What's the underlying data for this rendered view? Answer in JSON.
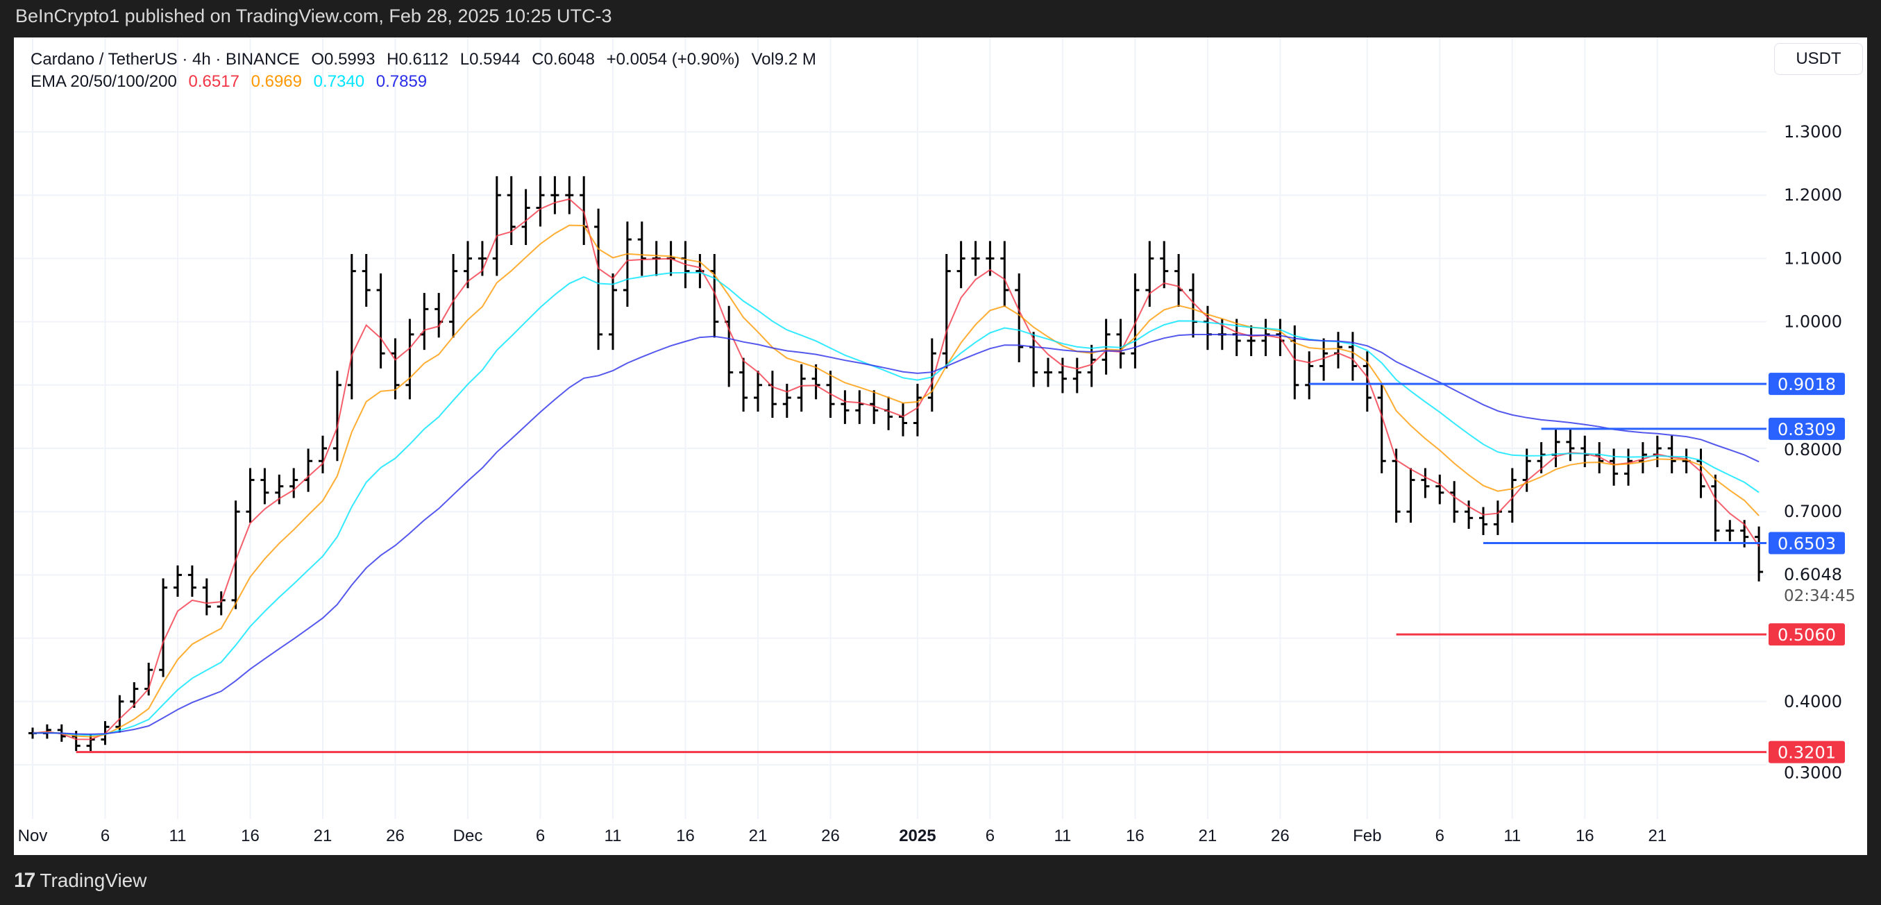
{
  "header": {
    "published": "BeInCrypto1 published on TradingView.com, Feb 28, 2025 10:25 UTC-3"
  },
  "legend": {
    "symbol": "Cardano / TetherUS · 4h · BINANCE",
    "open": "O0.5993",
    "high": "H0.6112",
    "low": "L0.5944",
    "close": "C0.6048",
    "change": "+0.0054 (+0.90%)",
    "volume": "Vol9.2 M",
    "ema_label": "EMA 20/50/100/200",
    "ema_values": [
      "0.6517",
      "0.6969",
      "0.7340",
      "0.7859"
    ]
  },
  "colors": {
    "ema20": "#f23645",
    "ema50": "#ff9800",
    "ema100": "#00e5ff",
    "ema200": "#2a2ee8",
    "support": "#f23645",
    "resistance": "#2962ff",
    "candle": "#000000"
  },
  "currency_button": "USDT",
  "countdown": "02:34:45",
  "footer": {
    "brand": "TradingView"
  },
  "chart_data": {
    "type": "ohlc",
    "title": "Cardano / TetherUS · 4h · BINANCE",
    "ylim": [
      0.25,
      1.37
    ],
    "yticks": [
      "1.3000",
      "1.2000",
      "1.1000",
      "1.0000",
      "0.8000",
      "0.7000",
      "0.4000",
      "0.3000"
    ],
    "ytick_values": [
      1.3,
      1.2,
      1.1,
      1.0,
      0.8,
      0.7,
      0.4,
      0.3
    ],
    "xticks": [
      {
        "label": "Nov",
        "date": "2024-11-01"
      },
      {
        "label": "6",
        "date": "2024-11-06"
      },
      {
        "label": "11",
        "date": "2024-11-11"
      },
      {
        "label": "16",
        "date": "2024-11-16"
      },
      {
        "label": "21",
        "date": "2024-11-21"
      },
      {
        "label": "26",
        "date": "2024-11-26"
      },
      {
        "label": "Dec",
        "date": "2024-12-01"
      },
      {
        "label": "6",
        "date": "2024-12-06"
      },
      {
        "label": "11",
        "date": "2024-12-11"
      },
      {
        "label": "16",
        "date": "2024-12-16"
      },
      {
        "label": "21",
        "date": "2024-12-21"
      },
      {
        "label": "26",
        "date": "2024-12-26"
      },
      {
        "label": "2025",
        "date": "2025-01-01"
      },
      {
        "label": "6",
        "date": "2025-01-06"
      },
      {
        "label": "11",
        "date": "2025-01-11"
      },
      {
        "label": "16",
        "date": "2025-01-16"
      },
      {
        "label": "21",
        "date": "2025-01-21"
      },
      {
        "label": "26",
        "date": "2025-01-26"
      },
      {
        "label": "Feb",
        "date": "2025-02-01"
      },
      {
        "label": "6",
        "date": "2025-02-06"
      },
      {
        "label": "11",
        "date": "2025-02-11"
      },
      {
        "label": "16",
        "date": "2025-02-16"
      },
      {
        "label": "21",
        "date": "2025-02-21"
      }
    ],
    "start_date": "2024-11-01",
    "daily_close": [
      0.35,
      0.355,
      0.345,
      0.33,
      0.34,
      0.36,
      0.4,
      0.42,
      0.45,
      0.58,
      0.6,
      0.58,
      0.55,
      0.56,
      0.7,
      0.75,
      0.73,
      0.74,
      0.75,
      0.78,
      0.8,
      0.9,
      1.08,
      1.05,
      0.95,
      0.9,
      0.98,
      1.02,
      1.0,
      1.08,
      1.1,
      1.1,
      1.2,
      1.15,
      1.18,
      1.2,
      1.2,
      1.2,
      1.15,
      0.98,
      1.05,
      1.13,
      1.1,
      1.1,
      1.1,
      1.08,
      1.08,
      1.0,
      0.92,
      0.88,
      0.9,
      0.87,
      0.88,
      0.91,
      0.9,
      0.87,
      0.86,
      0.87,
      0.86,
      0.85,
      0.84,
      0.88,
      0.95,
      1.08,
      1.1,
      1.1,
      1.1,
      1.05,
      0.96,
      0.92,
      0.92,
      0.91,
      0.92,
      0.94,
      0.98,
      0.95,
      1.05,
      1.1,
      1.08,
      1.05,
      1.0,
      0.98,
      0.98,
      0.97,
      0.97,
      0.98,
      0.97,
      0.9,
      0.93,
      0.95,
      0.96,
      0.93,
      0.88,
      0.78,
      0.7,
      0.75,
      0.74,
      0.73,
      0.7,
      0.69,
      0.68,
      0.7,
      0.75,
      0.78,
      0.79,
      0.81,
      0.8,
      0.79,
      0.78,
      0.76,
      0.78,
      0.79,
      0.8,
      0.78,
      0.78,
      0.74,
      0.67,
      0.67,
      0.66,
      0.6048
    ],
    "last_price": "0.6048",
    "levels": [
      {
        "label": "0.9018",
        "value": 0.9018,
        "from": "2025-01-28",
        "kind": "resistance"
      },
      {
        "label": "0.8309",
        "value": 0.8309,
        "from": "2025-02-13",
        "kind": "resistance"
      },
      {
        "label": "0.6503",
        "value": 0.6503,
        "from": "2025-02-09",
        "kind": "resistance"
      },
      {
        "label": "0.5060",
        "value": 0.506,
        "from": "2025-02-03",
        "kind": "support"
      },
      {
        "label": "0.3201",
        "value": 0.3201,
        "from": "2024-11-04",
        "kind": "support"
      }
    ],
    "ema_periods": [
      20,
      50,
      100,
      200
    ],
    "grid": true
  }
}
